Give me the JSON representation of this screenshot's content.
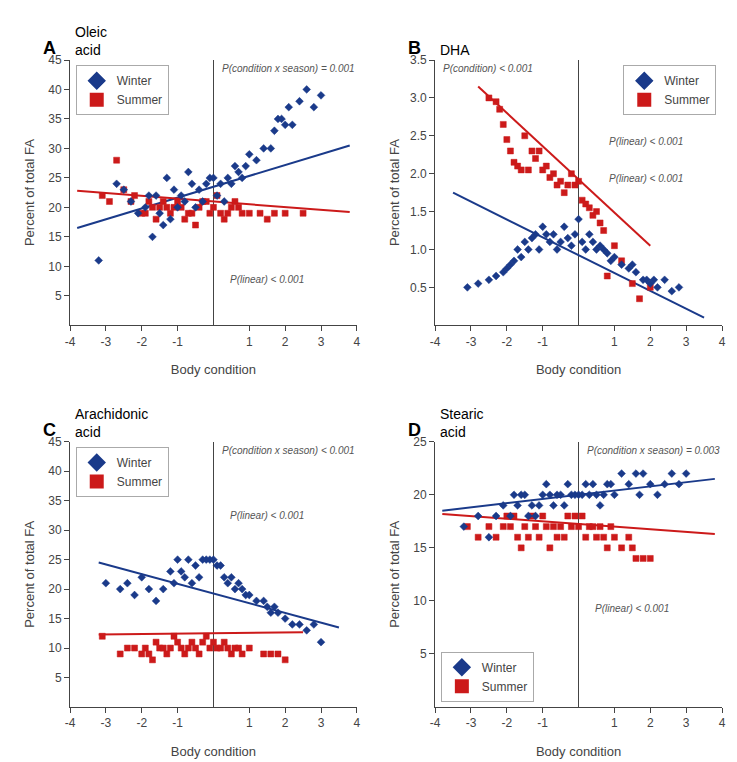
{
  "chart_data": [
    {
      "type": "scatter",
      "panel_label": "A",
      "title": "Oleic\nacid",
      "x_label": "Body condition",
      "y_label": "Percent of total FA",
      "xlim": [
        -4,
        4
      ],
      "xticks": [
        -4,
        -3,
        -2,
        -1,
        1,
        2,
        3,
        4
      ],
      "ylim": [
        0,
        45
      ],
      "yticks": [
        5,
        10,
        15,
        20,
        25,
        30,
        35,
        40,
        45
      ],
      "grid": false,
      "legend": "upper left",
      "annotations": [
        "P(condition x season) = 0.001",
        "P(linear) < 0.001"
      ],
      "series": [
        {
          "name": "Winter",
          "color": "#1a3a8a",
          "marker": "diamond",
          "x": [
            -3.2,
            -2.7,
            -2.5,
            -2.3,
            -2.1,
            -1.9,
            -1.8,
            -1.7,
            -1.6,
            -1.5,
            -1.4,
            -1.3,
            -1.2,
            -1.1,
            -1.0,
            -0.9,
            -0.8,
            -0.7,
            -0.6,
            -0.5,
            -0.4,
            -0.3,
            -0.2,
            -0.1,
            0.0,
            0.1,
            0.2,
            0.3,
            0.4,
            0.5,
            0.6,
            0.7,
            0.8,
            0.9,
            1.0,
            1.2,
            1.4,
            1.6,
            1.7,
            1.8,
            1.9,
            2.0,
            2.1,
            2.2,
            2.4,
            2.6,
            2.8,
            3.0
          ],
          "values": [
            11,
            24,
            23,
            21,
            19,
            20,
            22,
            15,
            22,
            19,
            17,
            25,
            18,
            23,
            20,
            22,
            21,
            26,
            24,
            20,
            23,
            21,
            24,
            25,
            25,
            22,
            24,
            21,
            25,
            24,
            27,
            26,
            25,
            27,
            29,
            28,
            30,
            30,
            33,
            35,
            35,
            34,
            37,
            34,
            38,
            40,
            37,
            39
          ],
          "trend_x": [
            -3.8,
            3.8
          ],
          "trend_y": [
            16.5,
            30.5
          ]
        },
        {
          "name": "Summer",
          "color": "#cc1a1a",
          "marker": "square",
          "x": [
            -3.1,
            -2.9,
            -2.7,
            -2.5,
            -2.3,
            -2.2,
            -2.0,
            -1.9,
            -1.8,
            -1.7,
            -1.6,
            -1.5,
            -1.4,
            -1.3,
            -1.2,
            -1.1,
            -1.0,
            -0.9,
            -0.8,
            -0.7,
            -0.6,
            -0.5,
            -0.4,
            -0.3,
            -0.2,
            -0.1,
            0.0,
            0.1,
            0.2,
            0.3,
            0.4,
            0.5,
            0.6,
            0.7,
            0.8,
            1.0,
            1.3,
            1.5,
            1.7,
            2.0,
            2.5
          ],
          "values": [
            22,
            21,
            28,
            23,
            21,
            22,
            19,
            19,
            21,
            20,
            18,
            20,
            21,
            20,
            19,
            20,
            21,
            20,
            18,
            19,
            19,
            17,
            20,
            21,
            21,
            19,
            20,
            22,
            19,
            18,
            19,
            20,
            21,
            20,
            19,
            19,
            19,
            18,
            19,
            19,
            19
          ],
          "trend_x": [
            -3.8,
            3.8
          ],
          "trend_y": [
            22.8,
            19.2
          ]
        }
      ]
    },
    {
      "type": "scatter",
      "panel_label": "B",
      "title": "DHA",
      "x_label": "Body condition",
      "y_label": "Percent of total FA",
      "xlim": [
        -4,
        4
      ],
      "xticks": [
        -4,
        -3,
        -2,
        -1,
        1,
        2,
        3,
        4
      ],
      "ylim": [
        0,
        3.5
      ],
      "yticks": [
        0.5,
        {
          "value": 1.0,
          "label": "1.0"
        },
        1.5,
        {
          "value": 2.0,
          "label": "2.0"
        },
        2.5,
        {
          "value": 3.0,
          "label": "3.0"
        },
        3.5
      ],
      "grid": false,
      "legend": "upper right",
      "annotations": [
        "P(condition) < 0.001",
        "P(linear) < 0.001",
        "P(linear) < 0.001"
      ],
      "series": [
        {
          "name": "Winter",
          "color": "#1a3a8a",
          "marker": "diamond",
          "x": [
            -3.1,
            -2.8,
            -2.5,
            -2.3,
            -2.1,
            -2.0,
            -1.9,
            -1.8,
            -1.7,
            -1.6,
            -1.5,
            -1.4,
            -1.3,
            -1.2,
            -1.1,
            -1.0,
            -0.9,
            -0.8,
            -0.7,
            -0.6,
            -0.5,
            -0.4,
            -0.3,
            -0.2,
            -0.1,
            0.0,
            0.1,
            0.2,
            0.3,
            0.4,
            0.5,
            0.6,
            0.7,
            0.8,
            0.9,
            1.0,
            1.2,
            1.4,
            1.5,
            1.6,
            1.8,
            1.9,
            2.0,
            2.1,
            2.2,
            2.4,
            2.6,
            2.8
          ],
          "values": [
            0.5,
            0.55,
            0.6,
            0.65,
            0.7,
            0.75,
            0.8,
            0.85,
            1.0,
            0.9,
            1.1,
            1.0,
            1.15,
            1.2,
            1.0,
            1.3,
            1.2,
            1.1,
            1.2,
            1.0,
            1.1,
            1.3,
            1.15,
            1.05,
            1.2,
            1.4,
            1.1,
            1.0,
            1.2,
            1.1,
            1.0,
            1.05,
            1.0,
            0.95,
            0.85,
            0.9,
            0.8,
            0.75,
            0.8,
            0.7,
            0.6,
            0.6,
            0.55,
            0.6,
            0.5,
            0.6,
            0.45,
            0.5
          ],
          "trend_x": [
            -3.5,
            3.5
          ],
          "trend_y": [
            1.75,
            0.1
          ]
        },
        {
          "name": "Summer",
          "color": "#cc1a1a",
          "marker": "square",
          "x": [
            -2.5,
            -2.3,
            -2.2,
            -2.1,
            -2.0,
            -1.9,
            -1.8,
            -1.7,
            -1.6,
            -1.5,
            -1.4,
            -1.3,
            -1.2,
            -1.1,
            -1.0,
            -0.9,
            -0.8,
            -0.7,
            -0.6,
            -0.5,
            -0.4,
            -0.3,
            -0.2,
            -0.1,
            0.0,
            0.1,
            0.2,
            0.3,
            0.4,
            0.5,
            0.6,
            0.7,
            0.8,
            1.0,
            1.2,
            1.5,
            1.7,
            2.0
          ],
          "values": [
            3.0,
            2.95,
            2.85,
            2.65,
            2.45,
            2.3,
            2.15,
            2.1,
            2.05,
            2.5,
            2.05,
            2.3,
            2.2,
            2.3,
            2.05,
            2.1,
            1.95,
            2.0,
            1.85,
            1.9,
            1.75,
            1.85,
            2.0,
            1.85,
            1.9,
            1.65,
            1.6,
            1.55,
            1.45,
            1.5,
            1.35,
            1.25,
            0.65,
            1.05,
            0.85,
            0.55,
            0.35,
            0.5
          ],
          "trend_x": [
            -2.8,
            2.0
          ],
          "trend_y": [
            3.15,
            1.05
          ]
        }
      ]
    },
    {
      "type": "scatter",
      "panel_label": "C",
      "title": "Arachidonic\nacid",
      "x_label": "Body condition",
      "y_label": "Percent of total FA",
      "xlim": [
        -4,
        4
      ],
      "xticks": [
        -4,
        -3,
        -2,
        -1,
        1,
        2,
        3,
        4
      ],
      "ylim": [
        0,
        45
      ],
      "yticks": [
        5,
        10,
        15,
        20,
        25,
        30,
        35,
        40,
        45
      ],
      "grid": false,
      "legend": "upper left",
      "annotations": [
        "P(condition x season) < 0.001",
        "P(linear) < 0.001"
      ],
      "series": [
        {
          "name": "Winter",
          "color": "#1a3a8a",
          "marker": "diamond",
          "x": [
            -3.0,
            -2.6,
            -2.4,
            -2.2,
            -2.0,
            -1.8,
            -1.6,
            -1.4,
            -1.2,
            -1.1,
            -1.0,
            -0.9,
            -0.8,
            -0.7,
            -0.6,
            -0.5,
            -0.4,
            -0.3,
            -0.2,
            -0.1,
            0.0,
            0.1,
            0.2,
            0.3,
            0.4,
            0.5,
            0.6,
            0.7,
            0.8,
            0.9,
            1.0,
            1.2,
            1.4,
            1.5,
            1.6,
            1.7,
            1.8,
            2.0,
            2.2,
            2.4,
            2.6,
            2.8,
            3.0
          ],
          "values": [
            21,
            20,
            21,
            19,
            22,
            20,
            18,
            20,
            23,
            21,
            25,
            23,
            22,
            25,
            21,
            24,
            22,
            25,
            25,
            25,
            25,
            24,
            24,
            22,
            21,
            22,
            20,
            21,
            20,
            19,
            19,
            18,
            18,
            17,
            16,
            17,
            16,
            15,
            14,
            14,
            13,
            14,
            11
          ],
          "trend_x": [
            -3.2,
            3.5
          ],
          "trend_y": [
            24.5,
            13.5
          ]
        },
        {
          "name": "Summer",
          "color": "#cc1a1a",
          "marker": "square",
          "x": [
            -3.1,
            -2.6,
            -2.4,
            -2.2,
            -2.0,
            -1.9,
            -1.8,
            -1.7,
            -1.6,
            -1.5,
            -1.4,
            -1.3,
            -1.2,
            -1.1,
            -1.0,
            -0.9,
            -0.8,
            -0.7,
            -0.6,
            -0.5,
            -0.4,
            -0.3,
            -0.2,
            -0.1,
            0.0,
            0.1,
            0.2,
            0.3,
            0.4,
            0.5,
            0.6,
            0.7,
            0.8,
            1.0,
            1.4,
            1.6,
            1.8,
            2.0
          ],
          "values": [
            12,
            9,
            10,
            10,
            9,
            10,
            9,
            8,
            11,
            10,
            10,
            9,
            10,
            12,
            11,
            10,
            9,
            10,
            11,
            10,
            9,
            11,
            12,
            10,
            11,
            10,
            10,
            11,
            10,
            9,
            10,
            10,
            9,
            10,
            9,
            9,
            9,
            8
          ],
          "trend_x": [
            -3.2,
            2.5
          ],
          "trend_y": [
            12.3,
            12.7
          ]
        }
      ]
    },
    {
      "type": "scatter",
      "panel_label": "D",
      "title": "Stearic\nacid",
      "x_label": "Body condition",
      "y_label": "Percent of total FA",
      "xlim": [
        -4,
        4
      ],
      "xticks": [
        -4,
        -3,
        -2,
        -1,
        1,
        2,
        3,
        4
      ],
      "ylim": [
        0,
        25
      ],
      "yticks": [
        5,
        10,
        15,
        20,
        25
      ],
      "grid": false,
      "legend": "lower left",
      "annotations": [
        "P(condition x season) = 0.003",
        "P(linear) < 0.001"
      ],
      "series": [
        {
          "name": "Winter",
          "color": "#1a3a8a",
          "marker": "diamond",
          "x": [
            -3.2,
            -2.8,
            -2.5,
            -2.3,
            -2.1,
            -1.9,
            -1.8,
            -1.7,
            -1.6,
            -1.5,
            -1.4,
            -1.3,
            -1.2,
            -1.1,
            -1.0,
            -0.9,
            -0.8,
            -0.7,
            -0.6,
            -0.5,
            -0.4,
            -0.3,
            -0.2,
            -0.1,
            0.0,
            0.1,
            0.2,
            0.3,
            0.4,
            0.5,
            0.6,
            0.7,
            0.8,
            0.9,
            1.0,
            1.2,
            1.4,
            1.6,
            1.7,
            1.8,
            2.0,
            2.2,
            2.4,
            2.6,
            2.8,
            3.0
          ],
          "values": [
            17,
            18,
            16,
            18,
            19,
            18,
            20,
            19,
            20,
            20,
            18,
            19,
            18,
            19,
            20,
            21,
            20,
            19,
            20,
            20,
            19,
            21,
            20,
            20,
            20,
            20,
            21,
            20,
            21,
            20,
            19,
            20,
            21,
            21,
            20,
            22,
            21,
            22,
            20,
            22,
            21,
            20,
            21,
            22,
            21,
            22
          ],
          "trend_x": [
            -3.8,
            3.8
          ],
          "trend_y": [
            18.5,
            21.5
          ]
        },
        {
          "name": "Summer",
          "color": "#cc1a1a",
          "marker": "square",
          "x": [
            -3.1,
            -2.8,
            -2.5,
            -2.3,
            -2.1,
            -2.0,
            -1.9,
            -1.8,
            -1.7,
            -1.6,
            -1.5,
            -1.4,
            -1.3,
            -1.2,
            -1.1,
            -1.0,
            -0.9,
            -0.8,
            -0.7,
            -0.6,
            -0.5,
            -0.4,
            -0.3,
            -0.2,
            -0.1,
            0.0,
            0.1,
            0.2,
            0.3,
            0.4,
            0.5,
            0.6,
            0.7,
            0.8,
            0.9,
            1.0,
            1.2,
            1.4,
            1.5,
            1.6,
            1.8,
            2.0
          ],
          "values": [
            17,
            16,
            17,
            16,
            17,
            18,
            17,
            18,
            16,
            15,
            17,
            16,
            18,
            17,
            16,
            18,
            17,
            15,
            17,
            16,
            17,
            16,
            18,
            17,
            18,
            17,
            18,
            16,
            17,
            17,
            16,
            17,
            16,
            15,
            17,
            16,
            15,
            16,
            15,
            14,
            14,
            14
          ],
          "trend_x": [
            -3.8,
            3.8
          ],
          "trend_y": [
            18.2,
            16.3
          ]
        }
      ]
    }
  ]
}
